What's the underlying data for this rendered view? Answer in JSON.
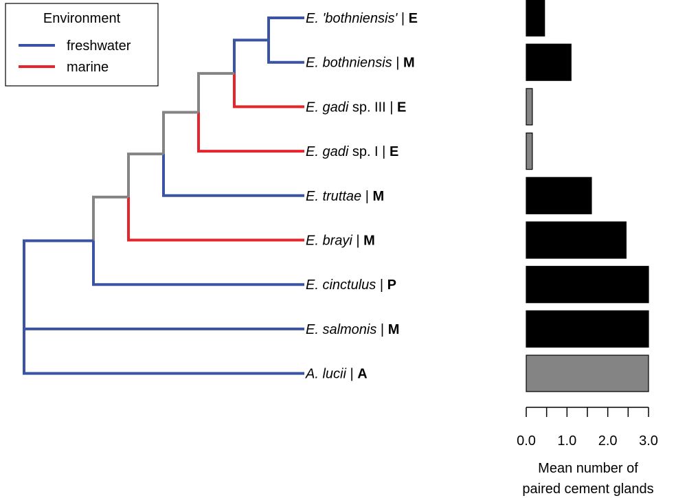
{
  "legend": {
    "title": "Environment",
    "items": [
      {
        "label": "freshwater",
        "color": "#3a53a4"
      },
      {
        "label": "marine",
        "color": "#e5242b"
      }
    ],
    "placement": "top-left"
  },
  "colors": {
    "freshwater": "#3a53a4",
    "marine": "#e5242b",
    "ambiguous": "#848484",
    "bar_dark": "#000000",
    "bar_gray": "#848484"
  },
  "tree": {
    "taxa": [
      {
        "id": "t0",
        "italic": "E. 'bothniensis'",
        "plain": "",
        "bold": "E"
      },
      {
        "id": "t1",
        "italic": "E. bothniensis",
        "plain": "",
        "bold": "M"
      },
      {
        "id": "t2",
        "italic": "E. gadi",
        "plain": " sp. III",
        "bold": "E"
      },
      {
        "id": "t3",
        "italic": "E. gadi",
        "plain": " sp. I",
        "bold": "E"
      },
      {
        "id": "t4",
        "italic": "E. truttae",
        "plain": "",
        "bold": "M"
      },
      {
        "id": "t5",
        "italic": "E. brayi",
        "plain": "",
        "bold": "M"
      },
      {
        "id": "t6",
        "italic": "E. cinctulus",
        "plain": "",
        "bold": "P"
      },
      {
        "id": "t7",
        "italic": "E. salmonis",
        "plain": "",
        "bold": "M"
      },
      {
        "id": "t8",
        "italic": "A. lucii",
        "plain": "",
        "bold": "A"
      }
    ],
    "separator": " | ",
    "clades": [
      {
        "id": "n1",
        "children": [
          "t0",
          "t1"
        ],
        "branch_colors": [
          "freshwater",
          "freshwater"
        ]
      },
      {
        "id": "n2",
        "children": [
          "n1",
          "t2"
        ],
        "branch_colors": [
          "freshwater",
          "marine"
        ]
      },
      {
        "id": "n3",
        "children": [
          "n2",
          "t3"
        ],
        "branch_colors": [
          "ambiguous",
          "marine"
        ]
      },
      {
        "id": "n4",
        "children": [
          "n3",
          "t4"
        ],
        "branch_colors": [
          "ambiguous",
          "freshwater"
        ]
      },
      {
        "id": "n5",
        "children": [
          "n4",
          "t5"
        ],
        "branch_colors": [
          "ambiguous",
          "marine"
        ]
      },
      {
        "id": "n6",
        "children": [
          "n5",
          "t6"
        ],
        "branch_colors": [
          "ambiguous",
          "freshwater"
        ]
      },
      {
        "id": "n7",
        "children": [
          "n6",
          "t7",
          "t8"
        ],
        "branch_colors": [
          "freshwater",
          "freshwater",
          "freshwater"
        ]
      }
    ]
  },
  "chart_data": {
    "type": "bar",
    "orientation": "horizontal",
    "categories": [
      "E. 'bothniensis'",
      "E. bothniensis",
      "E. gadi sp. III",
      "E. gadi sp. I",
      "E. truttae",
      "E. brayi",
      "E. cinctulus",
      "E. salmonis",
      "A. lucii"
    ],
    "values": [
      0.45,
      1.1,
      0.15,
      0.15,
      1.6,
      2.45,
      3.0,
      3.0,
      3.0
    ],
    "bar_colors": [
      "#000000",
      "#000000",
      "#848484",
      "#848484",
      "#000000",
      "#000000",
      "#000000",
      "#000000",
      "#848484"
    ],
    "xlim": [
      0,
      3.0
    ],
    "tick_labels": [
      "0.0",
      "1.0",
      "2.0",
      "3.0"
    ],
    "tick_values": [
      0,
      1,
      2,
      3
    ],
    "minor_ticks": [
      0,
      0.5,
      1,
      1.5,
      2,
      2.5,
      3
    ],
    "xlabel_lines": [
      "Mean number of",
      "paired cement glands"
    ]
  }
}
